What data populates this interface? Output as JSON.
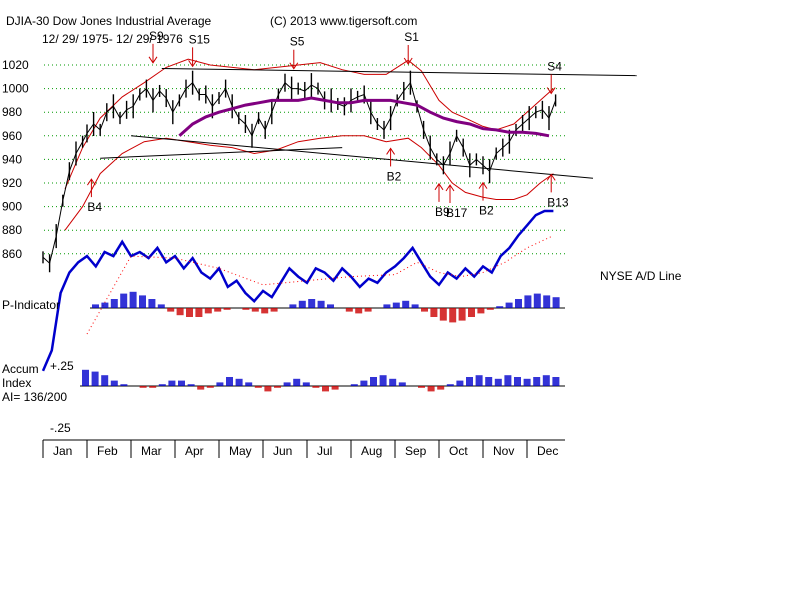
{
  "chart_data": {
    "type": "line",
    "title": "DJIA-30  Dow Jones Industrial Average",
    "copyright": "(C) 2013 www.tigersoft.com",
    "date_range": "12/ 29/ 1975- 12/ 29/ 1976",
    "y_ticks": [
      1020,
      1000,
      980,
      960,
      940,
      920,
      900,
      880,
      860
    ],
    "ylim": [
      855,
      1030
    ],
    "months": [
      "Jan",
      "Feb",
      "Mar",
      "Apr",
      "May",
      "Jun",
      "Jul",
      "Aug",
      "Sep",
      "Oct",
      "Nov",
      "Dec"
    ],
    "labels": {
      "ad_line": "NYSE A/D Line",
      "p_indicator": "P-Indicator",
      "accum_line1": "Accum",
      "accum_line2": "Index",
      "accum_ai": "AI= 136/200",
      "accum_plus": "+.25",
      "accum_minus": "-.25"
    },
    "signals": [
      {
        "text": "S9",
        "month": 2.5,
        "value": 1021,
        "type": "sell"
      },
      {
        "text": "S15",
        "month": 3.4,
        "value": 1018,
        "type": "sell"
      },
      {
        "text": "S5",
        "month": 5.7,
        "value": 1016,
        "type": "sell"
      },
      {
        "text": "S1",
        "month": 8.3,
        "value": 1020,
        "type": "sell"
      },
      {
        "text": "S4",
        "month": 11.55,
        "value": 995,
        "type": "sell"
      },
      {
        "text": "B4",
        "month": 1.1,
        "value": 925,
        "type": "buy"
      },
      {
        "text": "B2",
        "month": 7.9,
        "value": 951,
        "type": "buy"
      },
      {
        "text": "B9",
        "month": 9.0,
        "value": 921,
        "type": "buy"
      },
      {
        "text": "B17",
        "month": 9.25,
        "value": 920,
        "type": "buy"
      },
      {
        "text": "B2",
        "month": 10.0,
        "value": 922,
        "type": "buy"
      },
      {
        "text": "B13",
        "month": 11.55,
        "value": 929,
        "type": "buy"
      }
    ],
    "dji_close": [
      [
        0.0,
        857
      ],
      [
        0.15,
        852
      ],
      [
        0.3,
        875
      ],
      [
        0.45,
        905
      ],
      [
        0.6,
        930
      ],
      [
        0.75,
        945
      ],
      [
        0.9,
        955
      ],
      [
        1.0,
        962
      ],
      [
        1.15,
        970
      ],
      [
        1.3,
        965
      ],
      [
        1.45,
        980
      ],
      [
        1.6,
        985
      ],
      [
        1.75,
        975
      ],
      [
        1.9,
        982
      ],
      [
        2.05,
        985
      ],
      [
        2.2,
        995
      ],
      [
        2.35,
        1000
      ],
      [
        2.5,
        990
      ],
      [
        2.65,
        998
      ],
      [
        2.8,
        992
      ],
      [
        2.95,
        980
      ],
      [
        3.1,
        990
      ],
      [
        3.25,
        1000
      ],
      [
        3.4,
        1005
      ],
      [
        3.55,
        995
      ],
      [
        3.7,
        995
      ],
      [
        3.85,
        985
      ],
      [
        4.0,
        992
      ],
      [
        4.15,
        1000
      ],
      [
        4.3,
        985
      ],
      [
        4.45,
        975
      ],
      [
        4.6,
        970
      ],
      [
        4.75,
        960
      ],
      [
        4.9,
        975
      ],
      [
        5.05,
        965
      ],
      [
        5.2,
        980
      ],
      [
        5.35,
        995
      ],
      [
        5.5,
        1005
      ],
      [
        5.65,
        1000
      ],
      [
        5.8,
        1000
      ],
      [
        5.95,
        998
      ],
      [
        6.1,
        1003
      ],
      [
        6.25,
        1000
      ],
      [
        6.4,
        990
      ],
      [
        6.55,
        990
      ],
      [
        6.7,
        987
      ],
      [
        6.85,
        985
      ],
      [
        7.0,
        990
      ],
      [
        7.15,
        993
      ],
      [
        7.3,
        995
      ],
      [
        7.45,
        980
      ],
      [
        7.6,
        970
      ],
      [
        7.75,
        965
      ],
      [
        7.9,
        975
      ],
      [
        8.05,
        990
      ],
      [
        8.2,
        998
      ],
      [
        8.35,
        1005
      ],
      [
        8.5,
        985
      ],
      [
        8.65,
        965
      ],
      [
        8.8,
        950
      ],
      [
        8.95,
        940
      ],
      [
        9.1,
        935
      ],
      [
        9.25,
        945
      ],
      [
        9.4,
        960
      ],
      [
        9.55,
        950
      ],
      [
        9.7,
        935
      ],
      [
        9.85,
        940
      ],
      [
        10.0,
        935
      ],
      [
        10.15,
        930
      ],
      [
        10.3,
        945
      ],
      [
        10.45,
        950
      ],
      [
        10.6,
        955
      ],
      [
        10.75,
        965
      ],
      [
        10.9,
        970
      ],
      [
        11.05,
        975
      ],
      [
        11.2,
        980
      ],
      [
        11.35,
        982
      ],
      [
        11.5,
        975
      ],
      [
        11.65,
        990
      ]
    ],
    "ma_line": [
      [
        3.1,
        960
      ],
      [
        3.4,
        970
      ],
      [
        3.7,
        976
      ],
      [
        4.0,
        980
      ],
      [
        4.3,
        983
      ],
      [
        4.6,
        986
      ],
      [
        4.9,
        988
      ],
      [
        5.2,
        990
      ],
      [
        5.5,
        990
      ],
      [
        5.8,
        990
      ],
      [
        6.1,
        992
      ],
      [
        6.4,
        990
      ],
      [
        6.7,
        988
      ],
      [
        7.0,
        988
      ],
      [
        7.3,
        990
      ],
      [
        7.6,
        990
      ],
      [
        7.9,
        990
      ],
      [
        8.2,
        988
      ],
      [
        8.5,
        986
      ],
      [
        8.8,
        980
      ],
      [
        9.1,
        975
      ],
      [
        9.4,
        972
      ],
      [
        9.7,
        970
      ],
      [
        10.0,
        966
      ],
      [
        10.3,
        965
      ],
      [
        10.6,
        963
      ],
      [
        10.9,
        963
      ],
      [
        11.2,
        962
      ],
      [
        11.5,
        960
      ]
    ],
    "band_upper": [
      [
        0.5,
        915
      ],
      [
        0.9,
        950
      ],
      [
        1.3,
        975
      ],
      [
        1.8,
        993
      ],
      [
        2.3,
        1005
      ],
      [
        2.8,
        1018
      ],
      [
        3.3,
        1025
      ],
      [
        3.8,
        1020
      ],
      [
        4.3,
        1018
      ],
      [
        4.8,
        1016
      ],
      [
        5.3,
        1018
      ],
      [
        5.8,
        1020
      ],
      [
        6.3,
        1022
      ],
      [
        6.8,
        1016
      ],
      [
        7.3,
        1012
      ],
      [
        7.8,
        1012
      ],
      [
        8.3,
        1024
      ],
      [
        8.6,
        1015
      ],
      [
        9.0,
        990
      ],
      [
        9.3,
        980
      ],
      [
        9.6,
        975
      ],
      [
        10.0,
        968
      ],
      [
        10.3,
        965
      ],
      [
        10.7,
        970
      ],
      [
        11.0,
        980
      ],
      [
        11.3,
        990
      ],
      [
        11.6,
        1000
      ]
    ],
    "band_lower": [
      [
        0.5,
        880
      ],
      [
        0.9,
        900
      ],
      [
        1.3,
        928
      ],
      [
        1.8,
        945
      ],
      [
        2.3,
        955
      ],
      [
        2.8,
        958
      ],
      [
        3.3,
        955
      ],
      [
        3.8,
        952
      ],
      [
        4.3,
        950
      ],
      [
        4.8,
        945
      ],
      [
        5.3,
        948
      ],
      [
        5.8,
        955
      ],
      [
        6.3,
        958
      ],
      [
        6.8,
        960
      ],
      [
        7.3,
        960
      ],
      [
        7.8,
        955
      ],
      [
        8.3,
        958
      ],
      [
        8.6,
        950
      ],
      [
        9.0,
        935
      ],
      [
        9.3,
        920
      ],
      [
        9.6,
        912
      ],
      [
        10.0,
        908
      ],
      [
        10.3,
        906
      ],
      [
        10.7,
        906
      ],
      [
        11.0,
        910
      ],
      [
        11.3,
        920
      ],
      [
        11.6,
        928
      ]
    ],
    "trend_lines": [
      {
        "from": [
          2.7,
          1017
        ],
        "to": [
          13.5,
          1011
        ]
      },
      {
        "from": [
          1.3,
          941
        ],
        "to": [
          6.8,
          950
        ]
      },
      {
        "from": [
          2.0,
          960
        ],
        "to": [
          12.5,
          924
        ]
      }
    ],
    "ad_line": [
      [
        0.0,
        2
      ],
      [
        0.2,
        12
      ],
      [
        0.4,
        40
      ],
      [
        0.6,
        50
      ],
      [
        0.8,
        55
      ],
      [
        1.0,
        58
      ],
      [
        1.2,
        53
      ],
      [
        1.4,
        60
      ],
      [
        1.6,
        58
      ],
      [
        1.8,
        65
      ],
      [
        2.0,
        58
      ],
      [
        2.2,
        60
      ],
      [
        2.4,
        57
      ],
      [
        2.6,
        62
      ],
      [
        2.8,
        55
      ],
      [
        3.0,
        58
      ],
      [
        3.2,
        52
      ],
      [
        3.4,
        57
      ],
      [
        3.6,
        50
      ],
      [
        3.8,
        47
      ],
      [
        4.0,
        52
      ],
      [
        4.2,
        43
      ],
      [
        4.4,
        46
      ],
      [
        4.6,
        40
      ],
      [
        4.8,
        36
      ],
      [
        5.0,
        41
      ],
      [
        5.2,
        38
      ],
      [
        5.4,
        45
      ],
      [
        5.6,
        52
      ],
      [
        5.8,
        48
      ],
      [
        6.0,
        45
      ],
      [
        6.2,
        52
      ],
      [
        6.4,
        50
      ],
      [
        6.6,
        46
      ],
      [
        6.8,
        52
      ],
      [
        7.0,
        48
      ],
      [
        7.2,
        43
      ],
      [
        7.4,
        47
      ],
      [
        7.6,
        45
      ],
      [
        7.8,
        50
      ],
      [
        8.0,
        53
      ],
      [
        8.2,
        57
      ],
      [
        8.4,
        62
      ],
      [
        8.6,
        55
      ],
      [
        8.8,
        48
      ],
      [
        9.0,
        44
      ],
      [
        9.2,
        50
      ],
      [
        9.4,
        47
      ],
      [
        9.6,
        52
      ],
      [
        9.8,
        48
      ],
      [
        10.0,
        53
      ],
      [
        10.2,
        50
      ],
      [
        10.4,
        58
      ],
      [
        10.6,
        62
      ],
      [
        10.8,
        68
      ],
      [
        11.0,
        73
      ],
      [
        11.2,
        78
      ],
      [
        11.4,
        80
      ],
      [
        11.6,
        80
      ]
    ],
    "ad_ma": [
      [
        1.0,
        20
      ],
      [
        2.0,
        58
      ],
      [
        3.0,
        57
      ],
      [
        4.0,
        52
      ],
      [
        5.0,
        44
      ],
      [
        6.0,
        46
      ],
      [
        7.0,
        48
      ],
      [
        8.0,
        49
      ],
      [
        8.5,
        55
      ],
      [
        9.0,
        50
      ],
      [
        9.5,
        48
      ],
      [
        10.0,
        50
      ],
      [
        10.5,
        55
      ],
      [
        11.0,
        62
      ],
      [
        11.6,
        68
      ]
    ],
    "p_indicator": [
      0.2,
      0.3,
      0.5,
      0.8,
      0.9,
      0.7,
      0.5,
      0.2,
      -0.2,
      -0.4,
      -0.5,
      -0.5,
      -0.3,
      -0.2,
      -0.1,
      0.0,
      -0.1,
      -0.2,
      -0.3,
      -0.2,
      0.0,
      0.2,
      0.4,
      0.5,
      0.4,
      0.2,
      0.0,
      -0.2,
      -0.3,
      -0.2,
      0.0,
      0.2,
      0.3,
      0.4,
      0.2,
      -0.2,
      -0.5,
      -0.7,
      -0.8,
      -0.7,
      -0.5,
      -0.3,
      -0.1,
      0.1,
      0.3,
      0.5,
      0.7,
      0.8,
      0.7,
      0.6
    ],
    "accum_index": [
      0.9,
      0.8,
      0.6,
      0.3,
      0.1,
      0.0,
      -0.1,
      -0.1,
      0.1,
      0.3,
      0.3,
      0.1,
      -0.2,
      -0.1,
      0.2,
      0.5,
      0.4,
      0.2,
      -0.1,
      -0.3,
      -0.1,
      0.2,
      0.4,
      0.2,
      -0.1,
      -0.3,
      -0.2,
      0.0,
      0.1,
      0.3,
      0.5,
      0.6,
      0.4,
      0.2,
      0.0,
      -0.1,
      -0.3,
      -0.2,
      0.1,
      0.3,
      0.5,
      0.6,
      0.5,
      0.4,
      0.6,
      0.5,
      0.4,
      0.5,
      0.6,
      0.5
    ],
    "colors": {
      "price": "#000000",
      "ma": "#800080",
      "band": "#cc0000",
      "ad": "#0000cc",
      "ad_ma": "#ff0000",
      "grid": "#009900",
      "pos": "#0000cc",
      "neg": "#cc0000",
      "trend": "#000000",
      "signal": "#cc0000"
    }
  }
}
